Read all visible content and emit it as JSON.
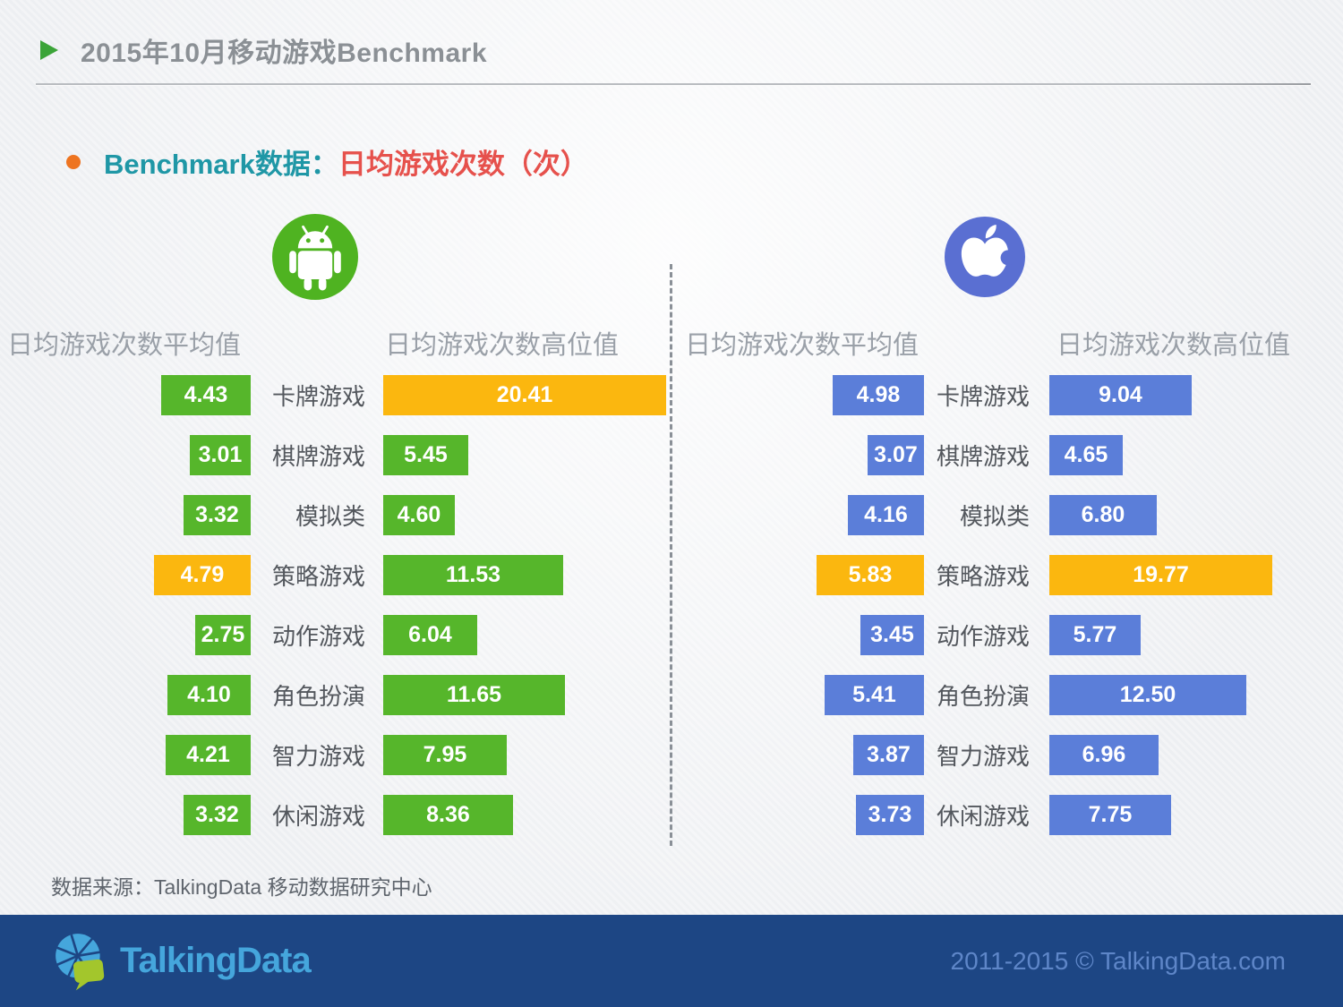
{
  "page": {
    "title": "2015年10月移动游戏Benchmark",
    "subtitle_prefix": "Benchmark数据：",
    "subtitle_highlight": "日均游戏次数（次）",
    "source_note": "数据来源：TalkingData 移动数据研究中心",
    "footer_brand": "TalkingData",
    "footer_copyright": "2011-2015 © TalkingData.com"
  },
  "colors": {
    "android_green": "#56b62b",
    "android_circle": "#4fb321",
    "ios_blue": "#5b7ed9",
    "apple_circle": "#5a6fd2",
    "highlight_orange": "#fbb70f",
    "subtitle_teal": "#1f97a6",
    "subtitle_red": "#e6514c",
    "bullet_orange": "#ee7420",
    "title_triangle_green": "#3ba438",
    "footer_bg": "#1d4684",
    "logo_light_blue": "#45a6dc",
    "logo_green": "#a3c62c"
  },
  "icons": [
    "title-triangle-icon",
    "subtitle-bullet-icon",
    "android-icon",
    "apple-icon",
    "talkingdata-logo-icon"
  ],
  "chart_data": [
    {
      "type": "bar",
      "platform": "Android",
      "platform_icon": "android-icon",
      "legend_position": "none",
      "grid": false,
      "columns": {
        "average_label": "日均游戏次数平均值",
        "high_label": "日均游戏次数高位值"
      },
      "categories": [
        "卡牌游戏",
        "棋牌游戏",
        "模拟类",
        "策略游戏",
        "动作游戏",
        "角色扮演",
        "智力游戏",
        "休闲游戏"
      ],
      "series": [
        {
          "name": "日均游戏次数平均值",
          "values": [
            4.43,
            3.01,
            3.32,
            4.79,
            2.75,
            4.1,
            4.21,
            3.32
          ],
          "highlight_indices": [
            3
          ]
        },
        {
          "name": "日均游戏次数高位值",
          "values": [
            20.41,
            5.45,
            4.6,
            11.53,
            6.04,
            11.65,
            7.95,
            8.36
          ],
          "highlight_indices": [
            0
          ]
        }
      ],
      "bar_color": "#56b62b",
      "highlight_color": "#fbb70f"
    },
    {
      "type": "bar",
      "platform": "iOS",
      "platform_icon": "apple-icon",
      "legend_position": "none",
      "grid": false,
      "columns": {
        "average_label": "日均游戏次数平均值",
        "high_label": "日均游戏次数高位值"
      },
      "categories": [
        "卡牌游戏",
        "棋牌游戏",
        "模拟类",
        "策略游戏",
        "动作游戏",
        "角色扮演",
        "智力游戏",
        "休闲游戏"
      ],
      "series": [
        {
          "name": "日均游戏次数平均值",
          "values": [
            4.98,
            3.07,
            4.16,
            5.83,
            3.45,
            5.41,
            3.87,
            3.73
          ],
          "highlight_indices": [
            3
          ]
        },
        {
          "name": "日均游戏次数高位值",
          "values": [
            9.04,
            4.65,
            6.8,
            19.77,
            5.77,
            12.5,
            6.96,
            7.75
          ],
          "highlight_indices": [
            3
          ]
        }
      ],
      "bar_color": "#5b7ed9",
      "highlight_color": "#fbb70f"
    }
  ]
}
